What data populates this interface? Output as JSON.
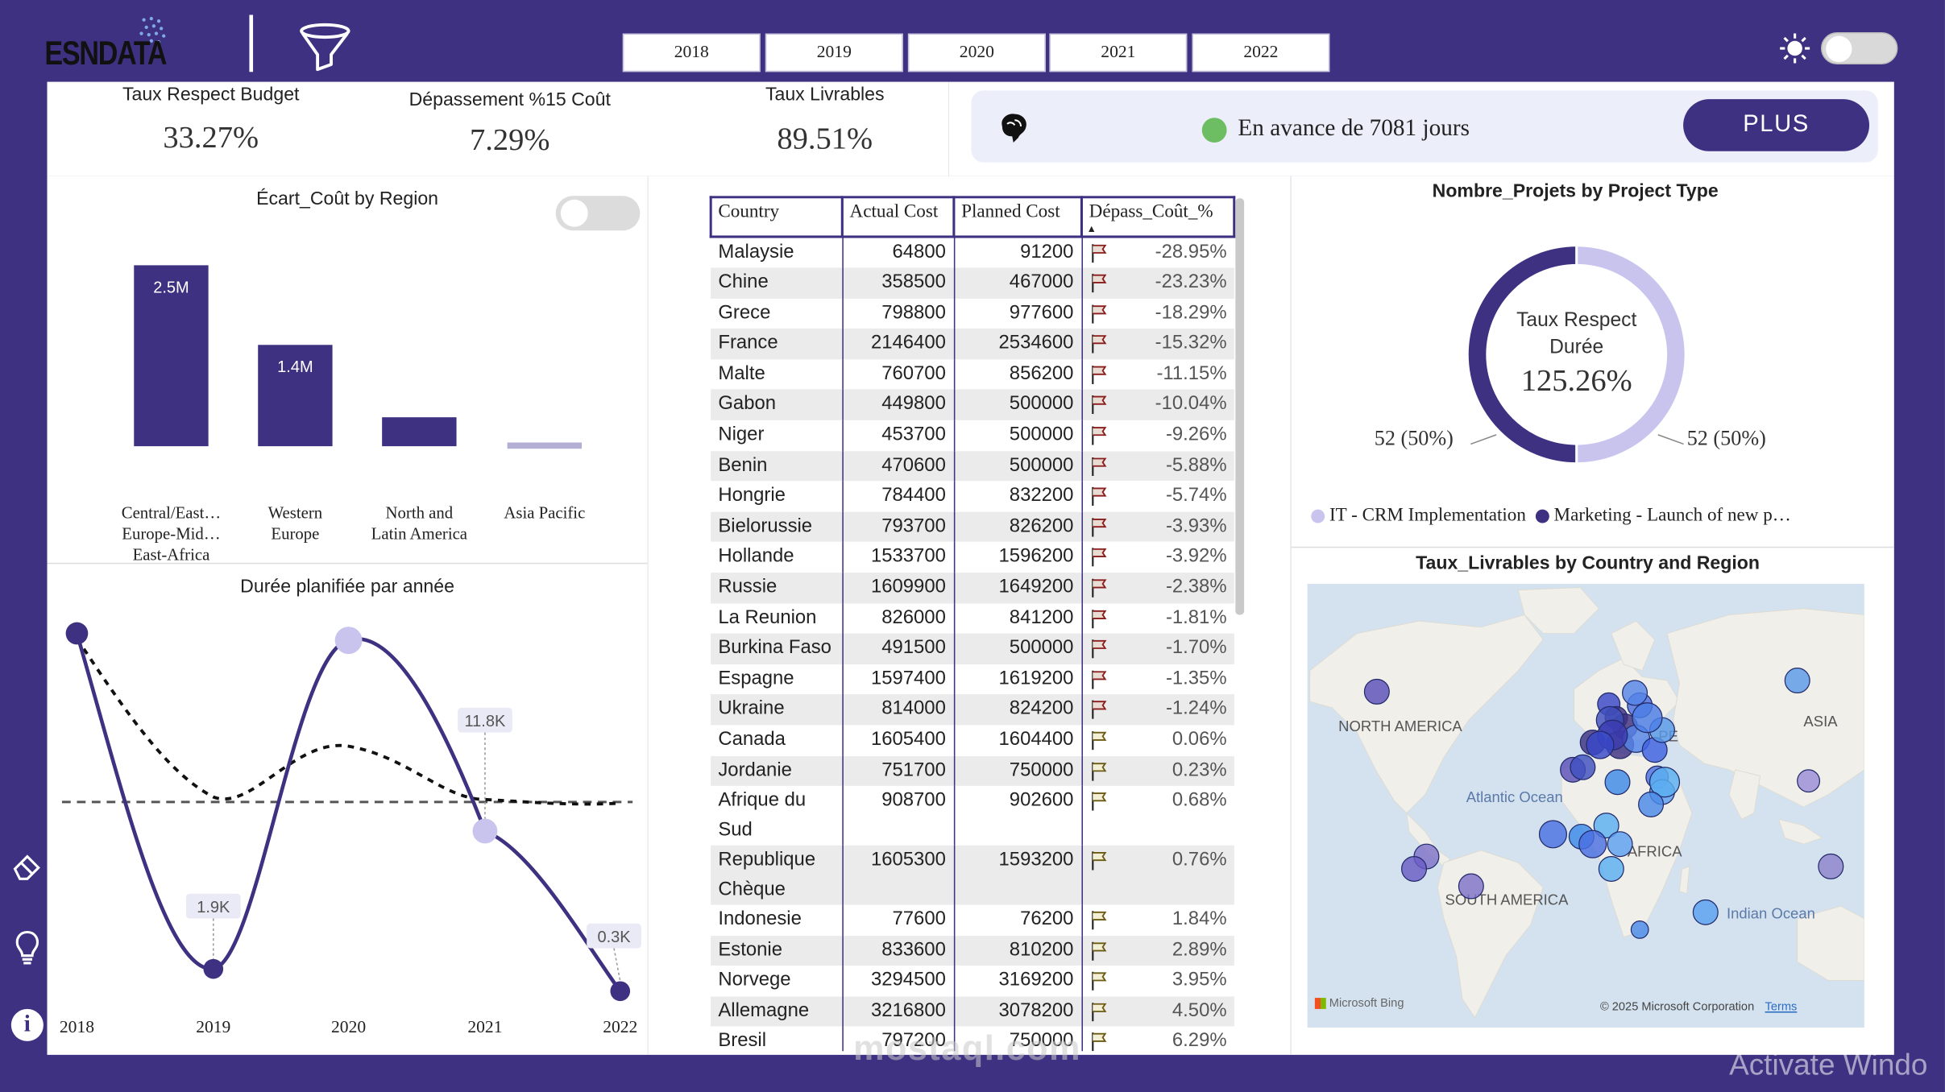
{
  "header": {
    "logo_text": "ESNDATA",
    "years": [
      "2018",
      "2019",
      "2020",
      "2021",
      "2022"
    ]
  },
  "kpis": {
    "budget": {
      "title": "Taux Respect Budget",
      "value": "33.27%"
    },
    "cost": {
      "title": "Dépassement %15 Coût",
      "value": "7.29%"
    },
    "deliverables": {
      "title": "Taux Livrables",
      "value": "89.51%"
    }
  },
  "status": {
    "text": "En avance de 7081 jours",
    "button": "PLUS",
    "dot_color": "#6dbd62"
  },
  "ecart_chart": {
    "title": "Écart_Coût by Region",
    "chart_data": {
      "type": "bar",
      "categories": [
        "Central/East… Europe-Mid… East-Africa",
        "Western Europe",
        "North and Latin America",
        "Asia Pacific"
      ],
      "values": [
        2.5,
        1.4,
        0.4,
        0.1
      ],
      "data_labels": [
        "2.5M",
        "1.4M",
        "",
        ""
      ],
      "unit": "M",
      "colors": [
        "#3e3181",
        "#3e3181",
        "#3e3181",
        "#b3aed4"
      ]
    },
    "cat_labels": [
      [
        "Central/East…",
        "Europe-Mid…",
        "East-Africa"
      ],
      [
        "Western",
        "Europe"
      ],
      [
        "North and",
        "Latin America"
      ],
      [
        "Asia Pacific"
      ]
    ]
  },
  "duree_chart": {
    "title": "Durée planifiée par année",
    "chart_data": {
      "type": "line",
      "x": [
        "2018",
        "2019",
        "2020",
        "2021",
        "2022"
      ],
      "values": [
        26,
        1.9,
        25.5,
        11.8,
        0.3
      ],
      "data_labels": [
        "",
        "1.9K",
        "",
        "11.8K",
        "0.3K"
      ],
      "unit": "K",
      "trend_line": true,
      "average_line": true
    }
  },
  "table": {
    "columns": [
      "Country",
      "Actual Cost",
      "Planned Cost",
      "Dépass_Coût_%"
    ],
    "rows": [
      [
        "Malaysie",
        "64800",
        "91200",
        "-28.95%"
      ],
      [
        "Chine",
        "358500",
        "467000",
        "-23.23%"
      ],
      [
        "Grece",
        "798800",
        "977600",
        "-18.29%"
      ],
      [
        "France",
        "2146400",
        "2534600",
        "-15.32%"
      ],
      [
        "Malte",
        "760700",
        "856200",
        "-11.15%"
      ],
      [
        "Gabon",
        "449800",
        "500000",
        "-10.04%"
      ],
      [
        "Niger",
        "453700",
        "500000",
        "-9.26%"
      ],
      [
        "Benin",
        "470600",
        "500000",
        "-5.88%"
      ],
      [
        "Hongrie",
        "784400",
        "832200",
        "-5.74%"
      ],
      [
        "Bielorussie",
        "793700",
        "826200",
        "-3.93%"
      ],
      [
        "Hollande",
        "1533700",
        "1596200",
        "-3.92%"
      ],
      [
        "Russie",
        "1609900",
        "1649200",
        "-2.38%"
      ],
      [
        "La Reunion",
        "826000",
        "841200",
        "-1.81%"
      ],
      [
        "Burkina Faso",
        "491500",
        "500000",
        "-1.70%"
      ],
      [
        "Espagne",
        "1597400",
        "1619200",
        "-1.35%"
      ],
      [
        "Ukraine",
        "814000",
        "824200",
        "-1.24%"
      ],
      [
        "Canada",
        "1605400",
        "1604400",
        "0.06%"
      ],
      [
        "Jordanie",
        "751700",
        "750000",
        "0.23%"
      ],
      [
        "Afrique du Sud",
        "908700",
        "902600",
        "0.68%"
      ],
      [
        "Republique Chèque",
        "1605300",
        "1593200",
        "0.76%"
      ],
      [
        "Indonesie",
        "77600",
        "76200",
        "1.84%"
      ],
      [
        "Estonie",
        "833600",
        "810200",
        "2.89%"
      ],
      [
        "Norvege",
        "3294500",
        "3169200",
        "3.95%"
      ],
      [
        "Allemagne",
        "3216800",
        "3078200",
        "4.50%"
      ],
      [
        "Bresil",
        "797200",
        "750000",
        "6.29%"
      ]
    ]
  },
  "donut": {
    "title": "Nombre_Projets by Project Type",
    "center_label_1": "Taux Respect",
    "center_label_2": "Durée",
    "center_value": "125.26%",
    "left_label": "52 (50%)",
    "right_label": "52 (50%)",
    "chart_data": {
      "type": "pie",
      "categories": [
        "IT - CRM Implementation",
        "Marketing - Launch of new p…"
      ],
      "values": [
        52,
        52
      ],
      "colors": [
        "#c8c4ee",
        "#3e3181"
      ]
    },
    "legend": [
      "IT -  CRM Implementation",
      "Marketing - Launch of new p…"
    ]
  },
  "map": {
    "title": "Taux_Livrables by Country and Region",
    "labels": {
      "north_america": "NORTH AMERICA",
      "europe": "PE",
      "asia": "ASIA",
      "atlantic": "Atlantic Ocean",
      "africa": "AFRICA",
      "south_america": "SOUTH AMERICA",
      "indian": "Indian Ocean"
    },
    "footer_left": "Microsoft Bing",
    "footer_right": "© 2025 Microsoft Corporation",
    "terms": "Terms"
  },
  "watermark": "mostaql.com",
  "activate": "Activate Windo"
}
